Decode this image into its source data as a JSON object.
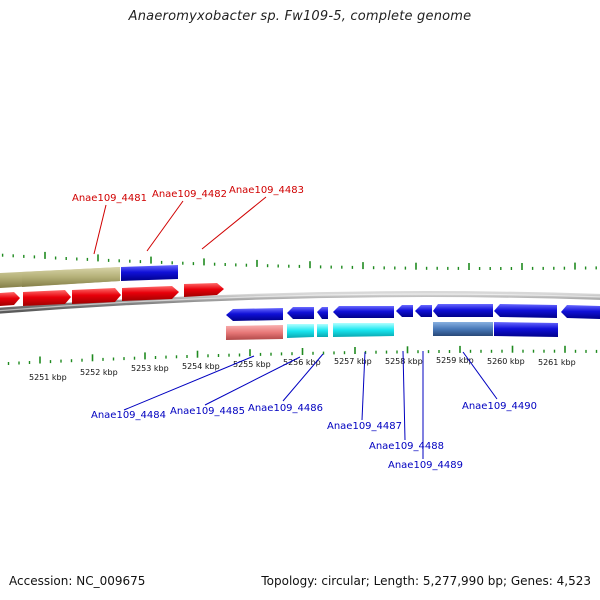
{
  "title": "Anaeromyxobacter sp. Fw109-5, complete genome",
  "footer": {
    "accession": "Accession: NC_009675",
    "summary": "Topology: circular; Length: 5,277,990 bp; Genes: 4,523"
  },
  "colors": {
    "forward_cds": "#e8000a",
    "reverse_cds": "#1010d8",
    "trna_cyan": "#18e6f0",
    "pink_feature": "#e87878",
    "olive_feature": "#b4b078",
    "steelblue_feature": "#4878b8",
    "backbone": "#909090",
    "tick": "#1f8a1f",
    "label_forward": "#d00000",
    "label_reverse": "#0000c0"
  },
  "kbp_ticks": [
    "5251 kbp",
    "5252 kbp",
    "5253 kbp",
    "5254 kbp",
    "5255 kbp",
    "5256 kbp",
    "5257 kbp",
    "5258 kbp",
    "5259 kbp",
    "5260 kbp",
    "5261 kbp"
  ],
  "genes_top": [
    {
      "label": "Anae109_4481"
    },
    {
      "label": "Anae109_4482"
    },
    {
      "label": "Anae109_4483"
    }
  ],
  "genes_bottom": [
    {
      "label": "Anae109_4484"
    },
    {
      "label": "Anae109_4485"
    },
    {
      "label": "Anae109_4486"
    },
    {
      "label": "Anae109_4487"
    },
    {
      "label": "Anae109_4488"
    },
    {
      "label": "Anae109_4489"
    },
    {
      "label": "Anae109_4490"
    }
  ]
}
